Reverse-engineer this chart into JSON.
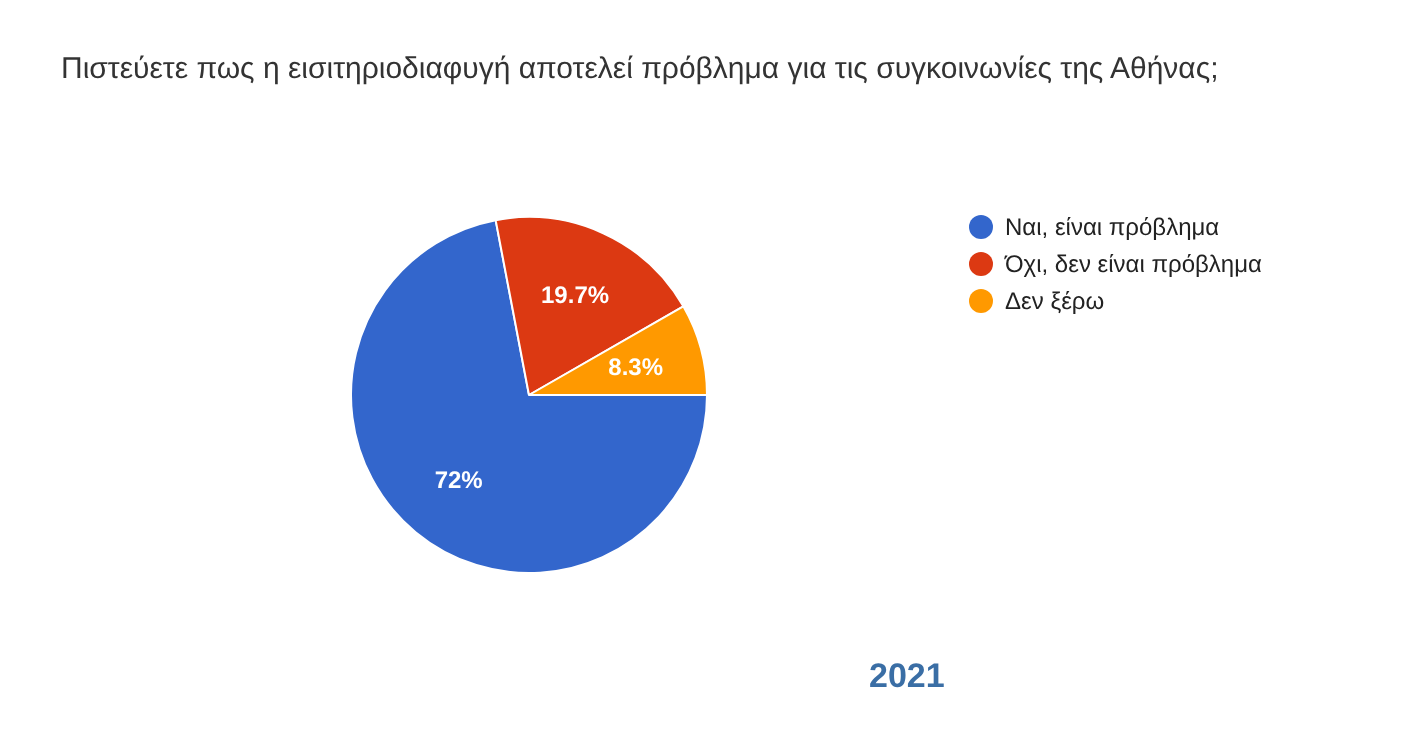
{
  "chart_data": {
    "type": "pie",
    "title": "Πιστεύετε πως η εισιτηριοδιαφυγή αποτελεί πρόβλημα για τις συγκοινωνίες της Αθήνας;",
    "categories": [
      "Ναι, είναι πρόβλημα",
      "Όχι, δεν είναι πρόβλημα",
      "Δεν ξέρω"
    ],
    "values": [
      72,
      19.7,
      8.3
    ],
    "colors": [
      "#3366cc",
      "#dc3912",
      "#ff9900"
    ],
    "value_labels": [
      "72%",
      "19.7%",
      "8.3%"
    ],
    "legend": "right",
    "annotations": [
      "2021"
    ]
  }
}
